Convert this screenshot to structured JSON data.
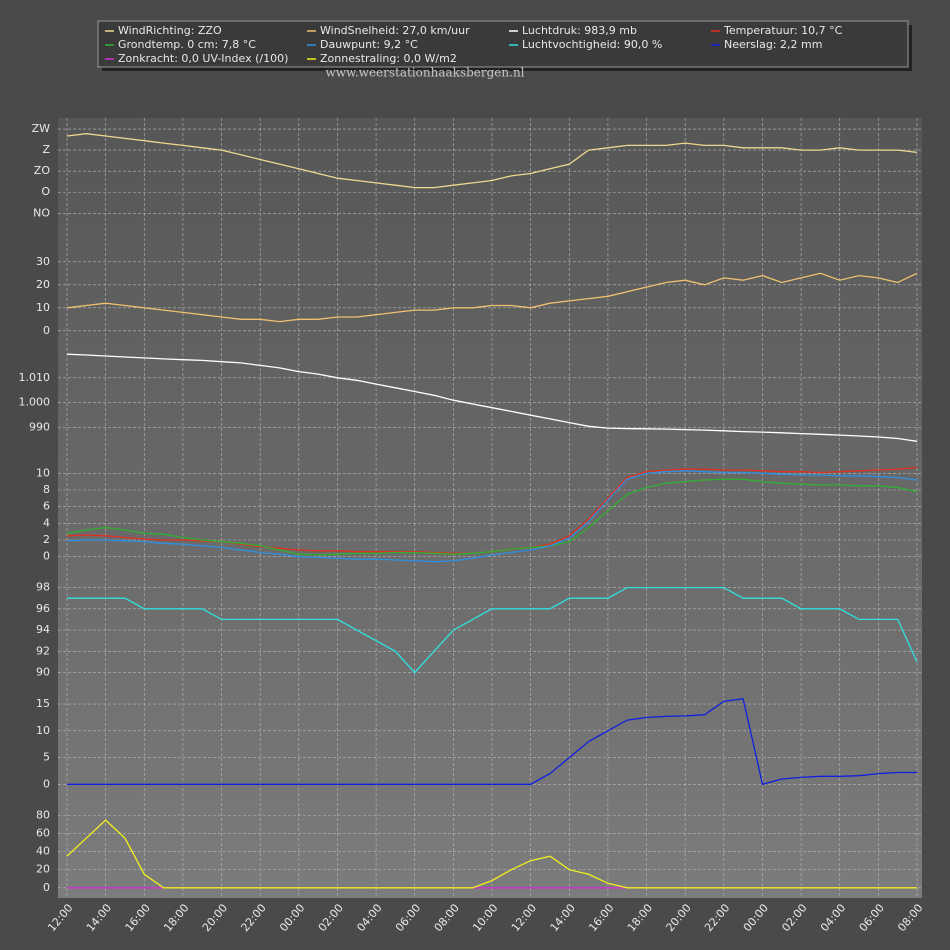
{
  "watermark": "www.weerstationhaaksbergen.nl",
  "chart_data": [
    {
      "type": "line",
      "ylim": [
        35,
        240
      ],
      "yticks": [
        {
          "value": 45,
          "label": "NO"
        },
        {
          "value": 90,
          "label": "O"
        },
        {
          "value": 135,
          "label": "ZO"
        },
        {
          "value": 180,
          "label": "Z"
        },
        {
          "value": 225,
          "label": "ZW"
        }
      ],
      "grid": true,
      "series": [
        {
          "name": "WindRichting: ZZO",
          "color": "#f0d890",
          "values": [
            210,
            215,
            210,
            205,
            200,
            195,
            190,
            185,
            180,
            170,
            160,
            150,
            140,
            130,
            120,
            115,
            110,
            105,
            100,
            100,
            105,
            110,
            115,
            125,
            130,
            140,
            150,
            180,
            185,
            190,
            190,
            190,
            195,
            190,
            190,
            185,
            185,
            185,
            180,
            180,
            185,
            180,
            180,
            180,
            175
          ]
        }
      ]
    },
    {
      "type": "line",
      "ylim": [
        -4,
        36
      ],
      "yticks": [
        0,
        10,
        20,
        30
      ],
      "grid": true,
      "series": [
        {
          "name": "WindSnelheid: 27,0 km/uur",
          "color": "#f0c070",
          "values": [
            10,
            11,
            12,
            11,
            10,
            9,
            8,
            7,
            6,
            5,
            5,
            4,
            5,
            5,
            6,
            6,
            7,
            8,
            9,
            9,
            10,
            10,
            11,
            11,
            10,
            12,
            13,
            14,
            15,
            17,
            19,
            21,
            22,
            20,
            23,
            22,
            24,
            21,
            23,
            25,
            22,
            24,
            23,
            21,
            25
          ]
        }
      ]
    },
    {
      "type": "line",
      "ylim": [
        983,
        1022
      ],
      "yticks": [
        990,
        {
          "value": 1000,
          "label": "1.000"
        },
        {
          "value": 1010,
          "label": "1.010"
        }
      ],
      "grid": true,
      "series": [
        {
          "name": "Luchtdruk: 983,9 mb",
          "color": "#ffffff",
          "values": [
            1019.5,
            1019.2,
            1018.8,
            1018.4,
            1018,
            1017.6,
            1017.3,
            1017,
            1016.5,
            1016,
            1015,
            1014,
            1012.5,
            1011.5,
            1010,
            1009,
            1007.5,
            1006,
            1004.5,
            1003,
            1001,
            999.5,
            998,
            996.5,
            995,
            993.5,
            992,
            990.5,
            989.8,
            989.6,
            989.5,
            989.4,
            989.2,
            989,
            988.7,
            988.4,
            988.2,
            987.9,
            987.6,
            987.3,
            987,
            986.6,
            986.2,
            985.6,
            984.5
          ]
        }
      ]
    },
    {
      "type": "line",
      "ylim": [
        -1,
        11
      ],
      "yticks": [
        0,
        2,
        4,
        6,
        8,
        10
      ],
      "grid": true,
      "series": [
        {
          "name": "Temperatuur: 10,7 °C",
          "color": "#e03020",
          "values": [
            2.5,
            2.6,
            2.5,
            2.3,
            2.1,
            2.0,
            2.0,
            1.9,
            1.8,
            1.5,
            1.2,
            1.0,
            0.8,
            0.7,
            0.7,
            0.6,
            0.6,
            0.6,
            0.6,
            0.5,
            0.4,
            0.4,
            0.6,
            0.9,
            1.1,
            1.5,
            2.5,
            4.5,
            7.0,
            9.5,
            10.2,
            10.4,
            10.5,
            10.5,
            10.4,
            10.4,
            10.3,
            10.2,
            10.2,
            10.1,
            10.2,
            10.3,
            10.4,
            10.5,
            10.7
          ]
        },
        {
          "name": "Grondtemp. 0 cm: 7,8 °C",
          "color": "#30b030",
          "values": [
            2.8,
            3.2,
            3.5,
            3.2,
            2.8,
            2.7,
            2.3,
            2.0,
            1.8,
            1.6,
            1.3,
            0.8,
            0.3,
            0.2,
            0.3,
            0.4,
            0.4,
            0.5,
            0.5,
            0.4,
            0.3,
            0.4,
            0.6,
            0.9,
            1.1,
            1.3,
            1.8,
            3.5,
            5.5,
            7.5,
            8.3,
            8.8,
            9.0,
            9.2,
            9.3,
            9.3,
            9.0,
            8.8,
            8.7,
            8.6,
            8.6,
            8.5,
            8.5,
            8.3,
            7.8
          ]
        },
        {
          "name": "Dauwpunt: 9,2 °C",
          "color": "#3090e0",
          "values": [
            1.9,
            2.0,
            2.0,
            1.9,
            1.8,
            1.6,
            1.5,
            1.3,
            1.1,
            0.8,
            0.5,
            0.3,
            0.0,
            -0.1,
            -0.2,
            -0.3,
            -0.3,
            -0.4,
            -0.5,
            -0.6,
            -0.5,
            -0.2,
            0.2,
            0.5,
            0.8,
            1.3,
            2.2,
            4.2,
            6.8,
            9.3,
            10.0,
            10.2,
            10.3,
            10.2,
            10.1,
            10.1,
            10.0,
            9.9,
            9.8,
            9.8,
            9.7,
            9.7,
            9.6,
            9.5,
            9.2
          ]
        }
      ]
    },
    {
      "type": "line",
      "ylim": [
        89.3,
        98.9
      ],
      "yticks": [
        90,
        92,
        94,
        96,
        98
      ],
      "grid": true,
      "series": [
        {
          "name": "Luchtvochtigheid: 90,0 %",
          "color": "#30e0e0",
          "values": [
            97,
            97,
            97,
            97,
            96,
            96,
            96,
            96,
            95,
            95,
            95,
            95,
            95,
            95,
            95,
            94,
            93,
            92,
            90,
            92,
            94,
            95,
            96,
            96,
            96,
            96,
            97,
            97,
            97,
            98,
            98,
            98,
            98,
            98,
            98,
            97,
            97,
            97,
            96,
            96,
            96,
            95,
            95,
            95,
            91
          ]
        }
      ]
    },
    {
      "type": "line",
      "ylim": [
        -2,
        16.7
      ],
      "yticks": [
        0,
        5,
        10,
        15
      ],
      "grid": true,
      "series": [
        {
          "name": "Neerslag: 2,2 mm",
          "color": "#1020e0",
          "values": [
            0,
            0,
            0,
            0,
            0,
            0,
            0,
            0,
            0,
            0,
            0,
            0,
            0,
            0,
            0,
            0,
            0,
            0,
            0,
            0,
            0,
            0,
            0,
            0,
            0,
            2,
            5,
            8,
            10,
            12,
            12.5,
            12.7,
            12.8,
            13,
            15.5,
            16,
            0,
            1,
            1.3,
            1.5,
            1.5,
            1.6,
            2,
            2.2,
            2.2
          ]
        }
      ]
    },
    {
      "type": "line",
      "ylim": [
        -8,
        94
      ],
      "yticks": [
        0,
        20,
        40,
        60,
        80
      ],
      "grid": true,
      "categories": [
        "12:00",
        null,
        "14:00",
        null,
        "16:00",
        null,
        "18:00",
        null,
        "20:00",
        null,
        "22:00",
        null,
        "00:00",
        null,
        "02:00",
        null,
        "04:00",
        null,
        "06:00",
        null,
        "08:00",
        null,
        "10:00",
        null,
        "12:00",
        null,
        "14:00",
        null,
        "16:00",
        null,
        "18:00",
        null,
        "20:00",
        null,
        "22:00",
        null,
        "00:00",
        null,
        "02:00",
        null,
        "04:00",
        null,
        "06:00",
        null,
        "08:00"
      ],
      "series": [
        {
          "name": "Zonkracht: 0,0 UV-Index (/100)",
          "color": "#d030d0",
          "values": [
            0,
            0,
            0,
            0,
            0,
            0,
            0,
            0,
            0,
            0,
            0,
            0,
            0,
            0,
            0,
            0,
            0,
            0,
            0,
            0,
            0,
            0,
            0,
            0,
            0,
            0,
            0,
            0,
            0,
            0,
            0,
            0,
            0,
            0,
            0,
            0,
            0,
            0,
            0,
            0,
            0,
            0,
            0,
            0,
            0
          ]
        },
        {
          "name": "Zonnestraling: 0,0 W/m2",
          "color": "#f0f020",
          "values": [
            35,
            55,
            75,
            55,
            15,
            0,
            0,
            0,
            0,
            0,
            0,
            0,
            0,
            0,
            0,
            0,
            0,
            0,
            0,
            0,
            0,
            0,
            8,
            20,
            30,
            35,
            20,
            15,
            5,
            0,
            0,
            0,
            0,
            0,
            0,
            0,
            0,
            0,
            0,
            0,
            0,
            0,
            0,
            0,
            0
          ]
        }
      ]
    }
  ]
}
